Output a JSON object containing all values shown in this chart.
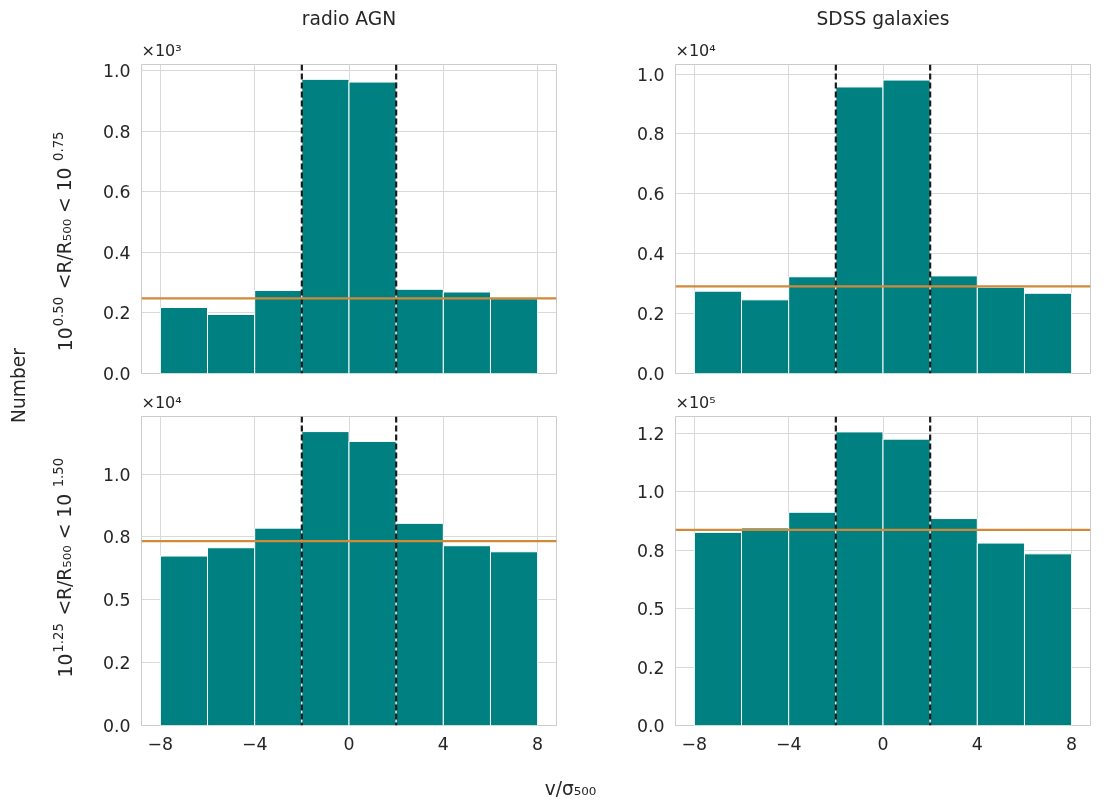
{
  "chart_data": [
    {
      "type": "histogram",
      "title": "radio AGN",
      "ylabel": "10$^{0.50}$ <R/R₅₀₀ < 10$^{0.75}$",
      "annotations": [
        "×10³",
        "Number"
      ],
      "bins": [
        -8,
        -6,
        -4,
        -2,
        0,
        2,
        4,
        6,
        8
      ],
      "values": [
        0.218,
        0.195,
        0.274,
        0.971,
        0.962,
        0.278,
        0.269,
        0.247
      ],
      "color": "#008080",
      "xlim": [
        -8.8,
        8.8
      ],
      "xticks": [
        -8,
        -4,
        0,
        4,
        8
      ],
      "ylim": [
        0,
        1.02
      ],
      "yticks": [
        {
          "value": 0,
          "label": "0.0"
        },
        0.2,
        0.4,
        0.6,
        0.8,
        {
          "value": 1,
          "label": "1.0"
        }
      ],
      "grid": true,
      "tick_labels": "y",
      "ref_lines": [
        {
          "axis": "x",
          "value": -2,
          "color": "#1a1a1a",
          "line_style": "dashed"
        },
        {
          "axis": "x",
          "value": 2,
          "color": "#1a1a1a",
          "line_style": "dashed"
        },
        {
          "axis": "y",
          "value": 0.248,
          "color": "#d08a3a",
          "line_style": "solid"
        }
      ]
    },
    {
      "type": "histogram",
      "title": "SDSS galaxies",
      "annotations": [
        "×10⁴"
      ],
      "bins": [
        -8,
        -6,
        -4,
        -2,
        0,
        2,
        4,
        6,
        8
      ],
      "values": [
        0.275,
        0.246,
        0.323,
        0.957,
        0.98,
        0.326,
        0.288,
        0.268
      ],
      "color": "#008080",
      "xlim": [
        -8.8,
        8.8
      ],
      "xticks": [
        -8,
        -4,
        0,
        4,
        8
      ],
      "ylim": [
        0,
        1.032
      ],
      "yticks": [
        {
          "value": 0,
          "label": "0.0"
        },
        0.2,
        0.4,
        0.6,
        0.8,
        {
          "value": 1,
          "label": "1.0"
        }
      ],
      "grid": true,
      "tick_labels": "y",
      "ref_lines": [
        {
          "axis": "x",
          "value": -2,
          "color": "#1a1a1a",
          "line_style": "dashed"
        },
        {
          "axis": "x",
          "value": 2,
          "color": "#1a1a1a",
          "line_style": "dashed"
        },
        {
          "axis": "y",
          "value": 0.291,
          "color": "#d08a3a",
          "line_style": "solid"
        }
      ]
    },
    {
      "type": "histogram",
      "ylabel": "10$^{1.25}$ <R/R₅₀₀ < 10$^{1.50}$",
      "xlabel": "v/σ₅₀₀",
      "annotations": [
        "×10⁴"
      ],
      "bins": [
        -8,
        -6,
        -4,
        -2,
        0,
        2,
        4,
        6,
        8
      ],
      "values": [
        0.674,
        0.707,
        0.785,
        1.169,
        1.13,
        0.804,
        0.715,
        0.691
      ],
      "color": "#008080",
      "xlim": [
        -8.8,
        8.8
      ],
      "xticks": [
        -8,
        -4,
        0,
        4,
        8
      ],
      "ylim": [
        0,
        1.229
      ],
      "yticks": [
        {
          "value": 0,
          "label": "0.0"
        },
        {
          "value": 0.25,
          "label": "0.2"
        },
        0.5,
        {
          "value": 0.75,
          "label": "0.8"
        },
        {
          "value": 1,
          "label": "1.0"
        }
      ],
      "grid": true,
      "ref_lines": [
        {
          "axis": "x",
          "value": -2,
          "color": "#1a1a1a",
          "line_style": "dashed"
        },
        {
          "axis": "x",
          "value": 2,
          "color": "#1a1a1a",
          "line_style": "dashed"
        },
        {
          "axis": "y",
          "value": 0.733,
          "color": "#d08a3a",
          "line_style": "solid"
        }
      ]
    },
    {
      "type": "histogram",
      "annotations": [
        "×10⁵"
      ],
      "bins": [
        -8,
        -6,
        -4,
        -2,
        0,
        2,
        4,
        6,
        8
      ],
      "values": [
        0.827,
        0.846,
        0.913,
        1.257,
        1.226,
        0.886,
        0.781,
        0.735
      ],
      "color": "#008080",
      "xlim": [
        -8.8,
        8.8
      ],
      "xticks": [
        -8,
        -4,
        0,
        4,
        8
      ],
      "ylim": [
        0,
        1.323
      ],
      "yticks": [
        {
          "value": 0,
          "label": "0.0"
        },
        {
          "value": 0.25,
          "label": "0.2"
        },
        0.5,
        {
          "value": 0.75,
          "label": "0.8"
        },
        {
          "value": 1,
          "label": "1.0"
        },
        {
          "value": 1.25,
          "label": "1.2"
        }
      ],
      "grid": true,
      "ref_lines": [
        {
          "axis": "x",
          "value": -2,
          "color": "#1a1a1a",
          "line_style": "dashed"
        },
        {
          "axis": "x",
          "value": 2,
          "color": "#1a1a1a",
          "line_style": "dashed"
        },
        {
          "axis": "y",
          "value": 0.838,
          "color": "#d08a3a",
          "line_style": "solid"
        }
      ]
    }
  ]
}
